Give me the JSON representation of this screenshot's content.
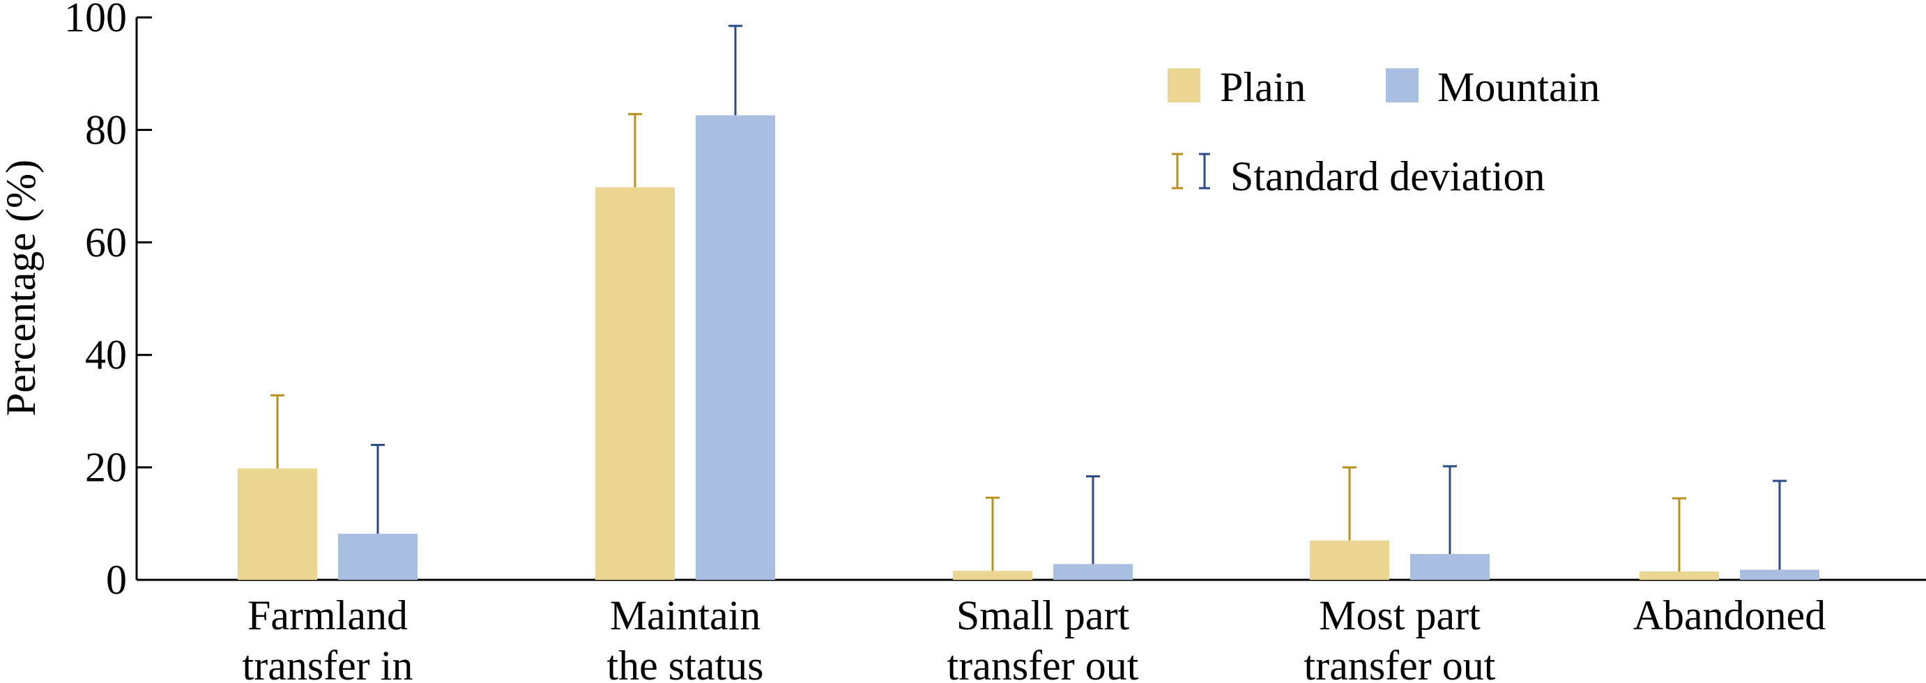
{
  "chart_data": {
    "type": "bar",
    "ylabel": "Percentage (%)",
    "ylim": [
      0,
      100
    ],
    "yticks": [
      "0",
      "20",
      "40",
      "60",
      "80",
      "100"
    ],
    "categories": [
      [
        "Farmland",
        "transfer in"
      ],
      [
        "Maintain",
        "the status"
      ],
      [
        "Small part",
        "transfer out"
      ],
      [
        "Most part",
        "transfer out"
      ],
      [
        "Abandoned"
      ]
    ],
    "series": [
      {
        "name": "Plain",
        "color": "#ead591",
        "error_color": "#b8901e",
        "values": [
          19.8,
          69.8,
          1.6,
          7.0,
          1.5
        ],
        "errors": [
          13.0,
          13.0,
          13.0,
          13.0,
          13.0
        ]
      },
      {
        "name": "Mountain",
        "color": "#a9bfe1",
        "error_color": "#2b4a87",
        "values": [
          8.2,
          82.6,
          2.8,
          4.6,
          1.8
        ],
        "errors": [
          15.8,
          15.9,
          15.6,
          15.6,
          15.8
        ]
      }
    ],
    "legend": {
      "position": "top-right",
      "error_label": "Standard deviation"
    },
    "grid": false
  }
}
